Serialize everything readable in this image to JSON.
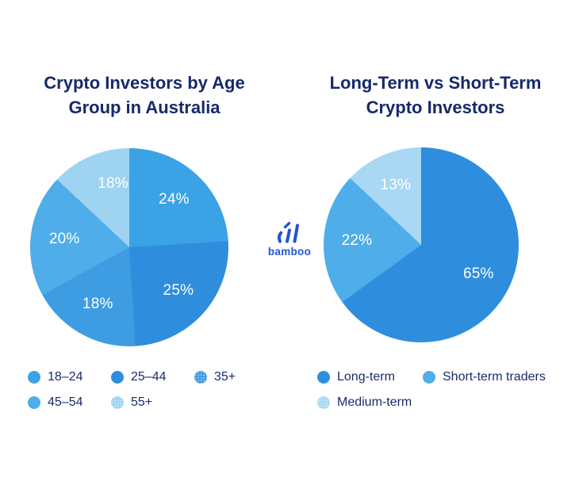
{
  "page": {
    "background": "#FFFFFF",
    "title_color": "#16296B",
    "legend_text_color": "#182C68"
  },
  "brand": {
    "name": "bamboo",
    "color": "#2156D2",
    "icon": "bamboo-bars-logo"
  },
  "chart_data": [
    {
      "type": "pie",
      "title": "Crypto Investors by Age Group in Australia",
      "start_angle_deg": 0,
      "direction": "clockwise",
      "legend_position": "bottom",
      "data_label_format": "percent",
      "slices": [
        {
          "label": "18–24",
          "value": 24,
          "unit": "%",
          "color": "#3BA2E6",
          "textured_legend_dot": false
        },
        {
          "label": "25–44",
          "value": 25,
          "unit": "%",
          "color": "#2E8EDD",
          "textured_legend_dot": false
        },
        {
          "label": "35+",
          "value": 18,
          "unit": "%",
          "color": "#3E9CE2",
          "textured_legend_dot": true
        },
        {
          "label": "45–54",
          "value": 20,
          "unit": "%",
          "color": "#4FADE9",
          "textured_legend_dot": false
        },
        {
          "label": "55+",
          "value": 18,
          "unit": "%",
          "color": "#9FD3F2",
          "textured_legend_dot": true
        }
      ]
    },
    {
      "type": "pie",
      "title": "Long-Term vs Short-Term Crypto Investors",
      "start_angle_deg": 0,
      "direction": "clockwise",
      "legend_position": "bottom",
      "data_label_format": "percent",
      "slices": [
        {
          "label": "Long-term",
          "value": 65,
          "unit": "%",
          "color": "#2E8EDD",
          "textured_legend_dot": false
        },
        {
          "label": "Short-term traders",
          "value": 22,
          "unit": "%",
          "color": "#4FADE9",
          "textured_legend_dot": false
        },
        {
          "label": "Medium-term",
          "value": 13,
          "unit": "%",
          "color": "#A8D8F4",
          "textured_legend_dot": true
        }
      ]
    }
  ]
}
